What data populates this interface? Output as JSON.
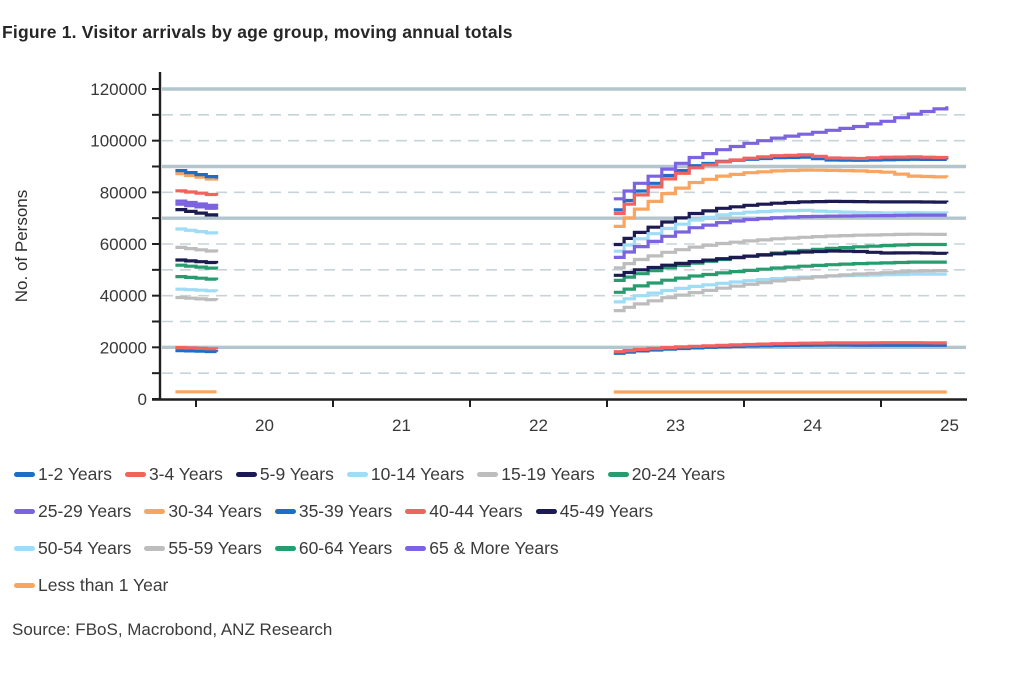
{
  "figure": {
    "title": "Figure 1.  Visitor arrivals by age group, moving annual totals",
    "source": "Source: FBoS, Macrobond, ANZ Research"
  },
  "chart_data": {
    "type": "line",
    "title": "Figure 1. Visitor arrivals by age group, moving annual totals",
    "xlabel": "",
    "ylabel": "No. of Persons",
    "ylim": [
      0,
      120000
    ],
    "y_tick_step": 10000,
    "y_label_step": 20000,
    "y_tick_labels": [
      "0",
      "20000",
      "40000",
      "60000",
      "80000",
      "100000",
      "120000"
    ],
    "xlim": [
      2019.74,
      2025.62
    ],
    "x_tick_years": [
      2020,
      2021,
      2022,
      2023,
      2024,
      2025
    ],
    "x_tick_labels": [
      "20",
      "21",
      "22",
      "23",
      "24",
      "25"
    ],
    "grid": {
      "dashed_levels": [
        10000,
        30000,
        40000,
        50000,
        60000,
        80000,
        100000,
        110000
      ],
      "solid_levels": [
        20000,
        70000,
        90000,
        120000
      ],
      "dashed_color": "#c6d4da",
      "solid_color": "#b3c6cd"
    },
    "axis_color": "#1f1f1f",
    "tick_label_color": "#383838",
    "gap": "no observations plotted between early 2020 and early 2023",
    "x_left": [
      2019.85,
      2020.15
    ],
    "x_right": [
      2023.05,
      2023.2,
      2023.4,
      2023.6,
      2023.8,
      2024.0,
      2024.2,
      2024.4,
      2024.6,
      2024.8,
      2025.0,
      2025.2,
      2025.48
    ],
    "series": [
      {
        "name": "1-2 Years",
        "color": "#1d6ec9",
        "left": [
          18700,
          18300
        ],
        "right": [
          17700,
          18600,
          19300,
          19800,
          20200,
          20500,
          20700,
          20800,
          20900,
          20800,
          20800,
          20800,
          20800
        ]
      },
      {
        "name": "3-4 Years",
        "color": "#f2625e",
        "left": [
          19900,
          19300
        ],
        "right": [
          18300,
          19200,
          19900,
          20400,
          20800,
          21100,
          21400,
          21600,
          21700,
          21700,
          21800,
          21800,
          21700
        ]
      },
      {
        "name": "5-9 Years",
        "color": "#1b1b52",
        "left": [
          73300,
          70600
        ],
        "right": [
          59800,
          64500,
          68500,
          71800,
          73800,
          75000,
          75800,
          76300,
          76500,
          76400,
          76300,
          76300,
          76200
        ]
      },
      {
        "name": "10-14 Years",
        "color": "#9fdcf5",
        "left": [
          65800,
          63800
        ],
        "right": [
          57200,
          62000,
          66000,
          69300,
          71300,
          72300,
          72800,
          73000,
          72500,
          72200,
          72000,
          72100,
          72000
        ]
      },
      {
        "name": "15-19 Years",
        "color": "#bdbdbd",
        "left": [
          58700,
          56800
        ],
        "right": [
          50800,
          54000,
          56800,
          58800,
          60200,
          61200,
          62000,
          62600,
          63100,
          63400,
          63600,
          63800,
          63700
        ]
      },
      {
        "name": "20-24 Years",
        "color": "#279c6f",
        "left": [
          51800,
          50300
        ],
        "right": [
          45900,
          48500,
          50800,
          52600,
          54000,
          55300,
          56500,
          57500,
          58300,
          58900,
          59400,
          59800,
          59800
        ]
      },
      {
        "name": "25-29 Years",
        "color": "#7c64e0",
        "left": [
          75400,
          73300
        ],
        "right": [
          54800,
          59000,
          63000,
          66300,
          68300,
          69500,
          70200,
          70600,
          70800,
          70900,
          71000,
          71200,
          71200
        ]
      },
      {
        "name": "30-34 Years",
        "color": "#f9a55f",
        "left": [
          87200,
          84500
        ],
        "right": [
          66800,
          73500,
          79500,
          83800,
          86300,
          87600,
          88300,
          88600,
          88500,
          88300,
          87800,
          86300,
          85800
        ]
      },
      {
        "name": "35-39 Years",
        "color": "#1d6ec9",
        "left": [
          88400,
          85300
        ],
        "right": [
          73200,
          80500,
          86500,
          90300,
          92000,
          92800,
          93400,
          93600,
          92500,
          92400,
          92600,
          92800,
          92700
        ]
      },
      {
        "name": "40-44 Years",
        "color": "#f2625e",
        "left": [
          80600,
          78700
        ],
        "right": [
          71800,
          79000,
          85200,
          89500,
          91800,
          93200,
          94200,
          94500,
          93300,
          93100,
          93600,
          93700,
          93400
        ]
      },
      {
        "name": "45-49 Years",
        "color": "#1b1b52",
        "left": [
          53800,
          52500
        ],
        "right": [
          47900,
          50000,
          51800,
          53200,
          54300,
          55300,
          56200,
          56900,
          57300,
          57100,
          56500,
          56600,
          56300
        ]
      },
      {
        "name": "50-54 Years",
        "color": "#9fdcf5",
        "left": [
          42500,
          41700
        ],
        "right": [
          37600,
          40000,
          42000,
          43600,
          44800,
          45800,
          46600,
          47200,
          47600,
          47900,
          48100,
          48300,
          48300
        ]
      },
      {
        "name": "55-59 Years",
        "color": "#bdbdbd",
        "left": [
          39300,
          38200
        ],
        "right": [
          34200,
          36800,
          39200,
          41200,
          42900,
          44400,
          45700,
          46800,
          47700,
          48400,
          48900,
          49500,
          49800
        ]
      },
      {
        "name": "60-64 Years",
        "color": "#279c6f",
        "left": [
          47400,
          46100
        ],
        "right": [
          41300,
          43800,
          46000,
          47600,
          48800,
          49800,
          50700,
          51400,
          52000,
          52400,
          52700,
          53000,
          53000
        ]
      },
      {
        "name": "65 & More Years",
        "color": "#7c64e0",
        "left": [
          76600,
          74400
        ],
        "right": [
          77500,
          83500,
          89000,
          93500,
          96500,
          99000,
          101000,
          102500,
          104000,
          105500,
          107500,
          110300,
          113300
        ]
      },
      {
        "name": "Less than 1 Year",
        "color": "#f9a55f",
        "left": [
          2800,
          2800
        ],
        "right": [
          2700,
          2700,
          2700,
          2700,
          2700,
          2700,
          2700,
          2700,
          2700,
          2700,
          2700,
          2700,
          2700
        ]
      }
    ],
    "legend_rows": [
      [
        "1-2 Years",
        "3-4 Years",
        "5-9 Years",
        "10-14 Years",
        "15-19 Years",
        "20-24 Years"
      ],
      [
        "25-29 Years",
        "30-34 Years",
        "35-39 Years",
        "40-44 Years",
        "45-49 Years"
      ],
      [
        "50-54 Years",
        "55-59 Years",
        "60-64 Years",
        "65 & More Years"
      ],
      [
        "Less than 1 Year"
      ]
    ],
    "legend_position": "bottom-left"
  }
}
